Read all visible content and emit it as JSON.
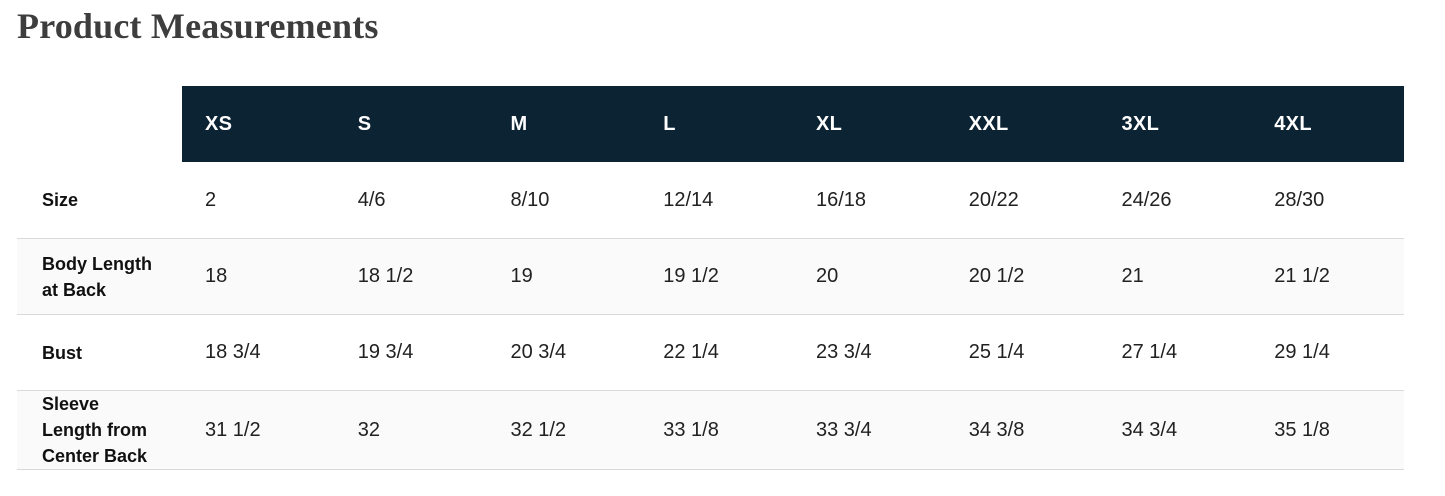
{
  "page": {
    "title": "Product Measurements"
  },
  "size_chart": {
    "columns": [
      "XS",
      "S",
      "M",
      "L",
      "XL",
      "XXL",
      "3XL",
      "4XL"
    ],
    "rows": [
      {
        "label": "Size",
        "values": [
          "2",
          "4/6",
          "8/10",
          "12/14",
          "16/18",
          "20/22",
          "24/26",
          "28/30"
        ]
      },
      {
        "label": "Body Length at Back",
        "values": [
          "18",
          "18 1/2",
          "19",
          "19 1/2",
          "20",
          "20 1/2",
          "21",
          "21 1/2"
        ]
      },
      {
        "label": "Bust",
        "values": [
          "18 3/4",
          "19 3/4",
          "20 3/4",
          "22 1/4",
          "23 3/4",
          "25 1/4",
          "27 1/4",
          "29 1/4"
        ]
      },
      {
        "label": "Sleeve Length from Center Back",
        "values": [
          "31 1/2",
          "32",
          "32 1/2",
          "33 1/8",
          "33 3/4",
          "34 3/8",
          "34 3/4",
          "35 1/8"
        ]
      }
    ],
    "colors": {
      "header_bg": "#0c2334",
      "header_text": "#ffffff",
      "row_alt_bg": "#fafafa",
      "divider": "#d9d9d9",
      "cell_text": "#212121",
      "title_text": "#3d3d3d"
    }
  }
}
